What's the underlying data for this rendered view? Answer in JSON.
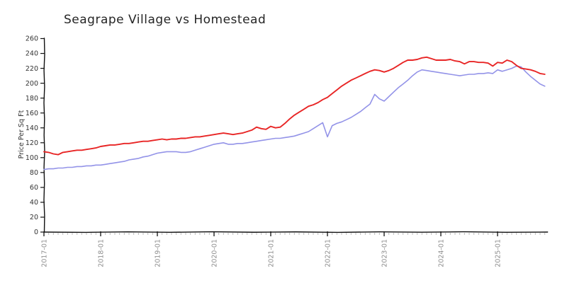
{
  "title": "Seagrape Village vs Homestead",
  "chart_data": {
    "type": "line",
    "title": "Seagrape Village vs Homestead",
    "xlabel": "",
    "ylabel": "Price Per Sq Ft",
    "x_start": "2017-01",
    "x_interval": "month",
    "x_tick_labels": [
      "2017-01",
      "2018-01",
      "2019-01",
      "2020-01",
      "2021-01",
      "2022-01",
      "2023-01",
      "2024-01",
      "2025-01"
    ],
    "y_ticks": [
      0,
      20,
      40,
      60,
      80,
      100,
      120,
      140,
      160,
      180,
      200,
      220,
      240,
      260
    ],
    "ylim": [
      0,
      260
    ],
    "grid": false,
    "legend_position": "none",
    "style": "xkcd-handdrawn",
    "series": [
      {
        "name": "Seagrape Village",
        "color": "#e82525",
        "stroke_width": 1.9,
        "values": [
          108,
          107,
          105,
          104,
          107,
          108,
          109,
          110,
          110,
          111,
          112,
          113,
          115,
          116,
          117,
          117,
          118,
          119,
          119,
          120,
          121,
          122,
          122,
          123,
          124,
          125,
          124,
          125,
          125,
          126,
          126,
          127,
          128,
          128,
          129,
          130,
          131,
          132,
          133,
          132,
          131,
          132,
          133,
          135,
          137,
          141,
          139,
          138,
          142,
          140,
          141,
          146,
          152,
          157,
          161,
          165,
          169,
          171,
          174,
          178,
          181,
          186,
          191,
          196,
          200,
          204,
          207,
          210,
          213,
          216,
          218,
          217,
          215,
          217,
          220,
          224,
          228,
          231,
          231,
          232,
          234,
          235,
          233,
          231,
          231,
          231,
          232,
          230,
          229,
          226,
          229,
          229,
          228,
          228,
          227,
          223,
          228,
          227,
          231,
          229,
          224,
          220,
          219,
          218,
          216,
          213,
          212
        ]
      },
      {
        "name": "Homestead",
        "color": "#9393e8",
        "stroke_width": 1.6,
        "values": [
          84,
          85,
          85,
          86,
          86,
          87,
          87,
          88,
          88,
          89,
          89,
          90,
          90,
          91,
          92,
          93,
          94,
          95,
          97,
          98,
          99,
          101,
          102,
          104,
          106,
          107,
          108,
          108,
          108,
          107,
          107,
          108,
          110,
          112,
          114,
          116,
          118,
          119,
          120,
          118,
          118,
          119,
          119,
          120,
          121,
          122,
          123,
          124,
          125,
          126,
          126,
          127,
          128,
          129,
          131,
          133,
          135,
          139,
          143,
          147,
          128,
          143,
          146,
          148,
          151,
          154,
          158,
          162,
          167,
          172,
          185,
          179,
          176,
          182,
          188,
          194,
          199,
          204,
          210,
          215,
          218,
          217,
          216,
          215,
          214,
          213,
          212,
          211,
          210,
          211,
          212,
          212,
          213,
          213,
          214,
          213,
          218,
          216,
          218,
          220,
          223,
          222,
          215,
          209,
          204,
          199,
          196
        ]
      }
    ]
  }
}
